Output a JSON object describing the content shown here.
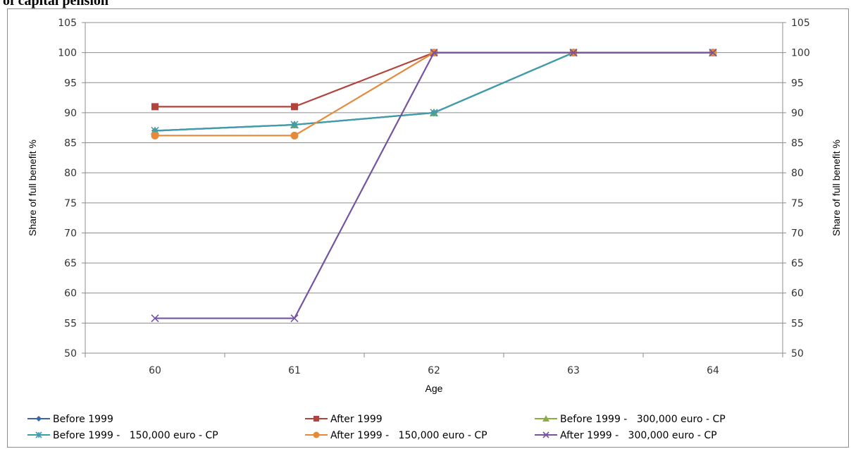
{
  "page": {
    "title": "of capital pension"
  },
  "chart_data": {
    "type": "line",
    "x": [
      60,
      61,
      62,
      63,
      64
    ],
    "categories": [
      "60",
      "61",
      "62",
      "63",
      "64"
    ],
    "xlabel": "Age",
    "ylabel": "Share of full benefit %",
    "ylabel_right": "Share of full benefit %",
    "ylim": [
      50,
      105
    ],
    "yticks": [
      50,
      55,
      60,
      65,
      70,
      75,
      80,
      85,
      90,
      95,
      100,
      105
    ],
    "grid": "horizontal",
    "legend_position": "bottom",
    "series": [
      {
        "name": "Before 1999",
        "color": "#3a65a8",
        "marker": "diamond",
        "values": [
          87,
          88,
          90,
          100,
          100
        ]
      },
      {
        "name": "After 1999",
        "color": "#b3413c",
        "marker": "square",
        "values": [
          91,
          91,
          100,
          100,
          100
        ]
      },
      {
        "name": "Before 1999 -   300,000 euro - CP",
        "color": "#8aae43",
        "marker": "triangle",
        "values": [
          87,
          88,
          90,
          100,
          100
        ]
      },
      {
        "name": "Before 1999 -   150,000 euro - CP",
        "color": "#3e9cb0",
        "marker": "star",
        "values": [
          87,
          88,
          90,
          100,
          100
        ]
      },
      {
        "name": "After 1999 -   150,000 euro - CP",
        "color": "#e68a39",
        "marker": "circle",
        "values": [
          86.2,
          86.2,
          100,
          100,
          100
        ]
      },
      {
        "name": "After 1999 -   300,000 euro - CP",
        "color": "#7453a0",
        "marker": "x",
        "values": [
          55.8,
          55.8,
          100,
          100,
          100
        ]
      }
    ]
  }
}
